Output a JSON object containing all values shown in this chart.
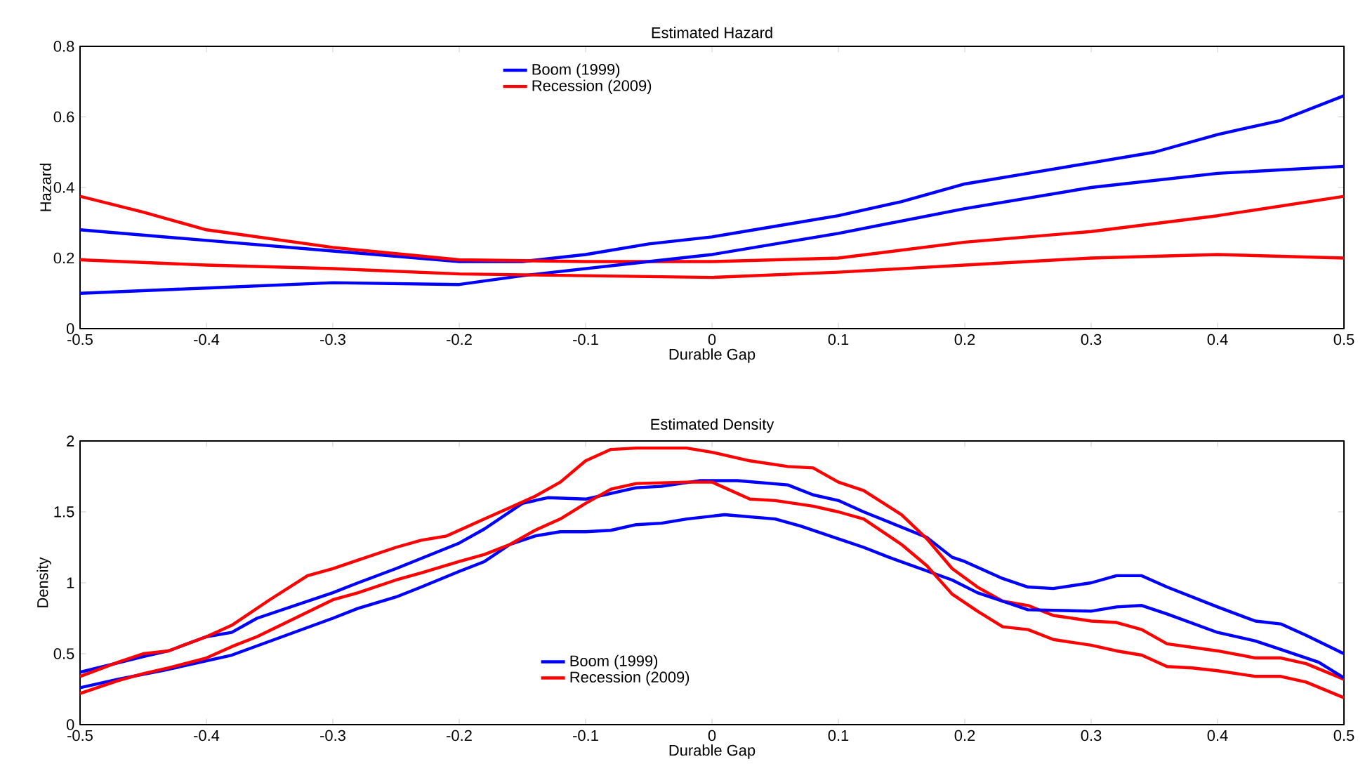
{
  "chart_data": [
    {
      "type": "line",
      "title": "Estimated Hazard",
      "xlabel": "Durable Gap",
      "ylabel": "Hazard",
      "legend": "top",
      "grid": false,
      "xlim": [
        -0.5,
        0.5
      ],
      "xticks": [
        -0.5,
        -0.4,
        -0.3,
        -0.2,
        -0.1,
        0,
        0.1,
        0.2,
        0.3,
        0.4,
        0.5
      ],
      "ylim": [
        0,
        0.8
      ],
      "yticks": [
        0,
        0.2,
        0.4,
        0.6,
        0.8
      ],
      "series": [
        {
          "name": "Boom (1999)",
          "color": "#0000ff",
          "x": [
            -0.5,
            -0.4,
            -0.3,
            -0.2,
            -0.15,
            -0.1,
            -0.05,
            0,
            0.05,
            0.1,
            0.15,
            0.2,
            0.25,
            0.3,
            0.35,
            0.4,
            0.45,
            0.5
          ],
          "values": [
            0.28,
            0.25,
            0.22,
            0.19,
            0.19,
            0.21,
            0.24,
            0.26,
            0.29,
            0.32,
            0.36,
            0.41,
            0.44,
            0.47,
            0.5,
            0.55,
            0.59,
            0.66
          ]
        },
        {
          "name": "Recession (2009)",
          "color": "#ff0000",
          "x": [
            -0.5,
            -0.45,
            -0.4,
            -0.3,
            -0.2,
            -0.1,
            0,
            0.1,
            0.2,
            0.3,
            0.4,
            0.5
          ],
          "values": [
            0.375,
            0.33,
            0.28,
            0.23,
            0.195,
            0.19,
            0.19,
            0.2,
            0.245,
            0.275,
            0.32,
            0.375
          ]
        },
        {
          "color": "#0000ff",
          "x": [
            -0.5,
            -0.4,
            -0.3,
            -0.2,
            -0.15,
            -0.1,
            -0.05,
            0,
            0.1,
            0.2,
            0.3,
            0.4,
            0.5
          ],
          "values": [
            0.1,
            0.115,
            0.13,
            0.125,
            0.15,
            0.17,
            0.19,
            0.21,
            0.27,
            0.34,
            0.4,
            0.44,
            0.46
          ]
        },
        {
          "color": "#ff0000",
          "x": [
            -0.5,
            -0.4,
            -0.3,
            -0.2,
            -0.1,
            0,
            0.1,
            0.2,
            0.3,
            0.4,
            0.5
          ],
          "values": [
            0.195,
            0.18,
            0.17,
            0.155,
            0.15,
            0.145,
            0.16,
            0.18,
            0.2,
            0.21,
            0.2
          ]
        }
      ]
    },
    {
      "type": "line",
      "title": "Estimated Density",
      "xlabel": "Durable Gap",
      "ylabel": "Density",
      "legend": "bottom",
      "grid": false,
      "xlim": [
        -0.5,
        0.5
      ],
      "xticks": [
        -0.5,
        -0.4,
        -0.3,
        -0.2,
        -0.1,
        0,
        0.1,
        0.2,
        0.3,
        0.4,
        0.5
      ],
      "ylim": [
        0,
        2
      ],
      "yticks": [
        0,
        0.5,
        1,
        1.5,
        2
      ],
      "series": [
        {
          "name": "Boom (1999)",
          "color": "#0000ff",
          "x": [
            -0.5,
            -0.45,
            -0.43,
            -0.4,
            -0.38,
            -0.36,
            -0.3,
            -0.28,
            -0.25,
            -0.2,
            -0.18,
            -0.15,
            -0.13,
            -0.1,
            -0.06,
            -0.04,
            -0.01,
            0.02,
            0.06,
            0.08,
            0.1,
            0.12,
            0.17,
            0.19,
            0.2,
            0.23,
            0.25,
            0.27,
            0.3,
            0.32,
            0.34,
            0.36,
            0.4,
            0.43,
            0.45,
            0.47,
            0.5
          ],
          "values": [
            0.37,
            0.48,
            0.52,
            0.62,
            0.65,
            0.75,
            0.93,
            1.0,
            1.1,
            1.28,
            1.38,
            1.56,
            1.6,
            1.59,
            1.67,
            1.68,
            1.72,
            1.72,
            1.69,
            1.62,
            1.58,
            1.5,
            1.32,
            1.18,
            1.15,
            1.03,
            0.97,
            0.96,
            1.0,
            1.05,
            1.05,
            0.97,
            0.83,
            0.73,
            0.71,
            0.63,
            0.5
          ]
        },
        {
          "name": "Recession (2009)",
          "color": "#ff0000",
          "x": [
            -0.5,
            -0.47,
            -0.45,
            -0.43,
            -0.4,
            -0.38,
            -0.35,
            -0.32,
            -0.3,
            -0.28,
            -0.25,
            -0.23,
            -0.21,
            -0.18,
            -0.16,
            -0.14,
            -0.12,
            -0.1,
            -0.08,
            -0.06,
            -0.02,
            0,
            0.03,
            0.06,
            0.08,
            0.1,
            0.12,
            0.15,
            0.17,
            0.19,
            0.21,
            0.23,
            0.25,
            0.27,
            0.3,
            0.32,
            0.34,
            0.36,
            0.4,
            0.43,
            0.45,
            0.47,
            0.5
          ],
          "values": [
            0.34,
            0.44,
            0.5,
            0.52,
            0.62,
            0.7,
            0.88,
            1.05,
            1.1,
            1.16,
            1.25,
            1.3,
            1.33,
            1.45,
            1.53,
            1.61,
            1.71,
            1.86,
            1.94,
            1.95,
            1.95,
            1.92,
            1.86,
            1.82,
            1.81,
            1.71,
            1.65,
            1.48,
            1.31,
            1.1,
            0.97,
            0.87,
            0.84,
            0.77,
            0.73,
            0.72,
            0.67,
            0.57,
            0.52,
            0.47,
            0.47,
            0.43,
            0.32
          ]
        },
        {
          "color": "#0000ff",
          "x": [
            -0.5,
            -0.47,
            -0.43,
            -0.4,
            -0.38,
            -0.3,
            -0.28,
            -0.25,
            -0.23,
            -0.2,
            -0.18,
            -0.16,
            -0.14,
            -0.12,
            -0.1,
            -0.08,
            -0.06,
            -0.04,
            -0.02,
            0.01,
            0.05,
            0.07,
            0.1,
            0.12,
            0.14,
            0.19,
            0.21,
            0.23,
            0.25,
            0.3,
            0.32,
            0.34,
            0.36,
            0.4,
            0.43,
            0.45,
            0.48,
            0.5
          ],
          "values": [
            0.26,
            0.32,
            0.39,
            0.45,
            0.49,
            0.75,
            0.82,
            0.9,
            0.97,
            1.08,
            1.15,
            1.27,
            1.33,
            1.36,
            1.36,
            1.37,
            1.41,
            1.42,
            1.45,
            1.48,
            1.45,
            1.4,
            1.31,
            1.25,
            1.18,
            1.02,
            0.93,
            0.87,
            0.81,
            0.8,
            0.83,
            0.84,
            0.78,
            0.65,
            0.59,
            0.53,
            0.44,
            0.33
          ]
        },
        {
          "color": "#ff0000",
          "x": [
            -0.5,
            -0.47,
            -0.45,
            -0.43,
            -0.4,
            -0.38,
            -0.36,
            -0.33,
            -0.3,
            -0.28,
            -0.25,
            -0.23,
            -0.2,
            -0.18,
            -0.16,
            -0.14,
            -0.12,
            -0.1,
            -0.08,
            -0.06,
            -0.02,
            0,
            0.03,
            0.05,
            0.08,
            0.1,
            0.12,
            0.15,
            0.17,
            0.19,
            0.21,
            0.23,
            0.25,
            0.27,
            0.3,
            0.32,
            0.34,
            0.36,
            0.38,
            0.4,
            0.43,
            0.45,
            0.47,
            0.5
          ],
          "values": [
            0.22,
            0.31,
            0.36,
            0.4,
            0.47,
            0.55,
            0.62,
            0.75,
            0.88,
            0.93,
            1.02,
            1.07,
            1.15,
            1.2,
            1.27,
            1.37,
            1.45,
            1.56,
            1.66,
            1.7,
            1.71,
            1.71,
            1.59,
            1.58,
            1.54,
            1.5,
            1.45,
            1.27,
            1.12,
            0.92,
            0.8,
            0.69,
            0.67,
            0.6,
            0.56,
            0.52,
            0.49,
            0.41,
            0.4,
            0.38,
            0.34,
            0.34,
            0.3,
            0.19
          ]
        }
      ]
    }
  ]
}
